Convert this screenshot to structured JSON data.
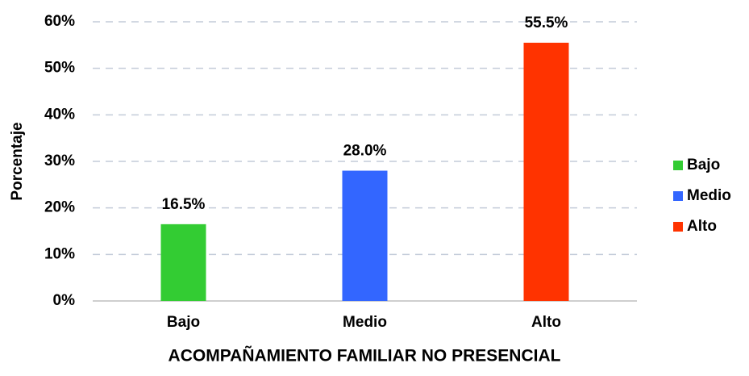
{
  "chart_data": {
    "type": "bar",
    "x_label": "ACOMPAÑAMIENTO FAMILIAR NO PRESENCIAL",
    "y_label": "Porcentaje",
    "categories": [
      "Bajo",
      "Medio",
      "Alto"
    ],
    "values": [
      16.5,
      28.0,
      55.5
    ],
    "value_labels": [
      "16.5%",
      "28.0%",
      "55.5%"
    ],
    "colors": [
      "#33cc33",
      "#3366ff",
      "#ff3300"
    ],
    "ylim": [
      0,
      60
    ],
    "yticks": [
      {
        "value": 0,
        "label": "0%"
      },
      {
        "value": 10,
        "label": "10%"
      },
      {
        "value": 20,
        "label": "20%"
      },
      {
        "value": 30,
        "label": "30%"
      },
      {
        "value": 40,
        "label": "40%"
      },
      {
        "value": 50,
        "label": "50%"
      },
      {
        "value": 60,
        "label": "60%"
      }
    ],
    "grid": true,
    "legend": "right"
  }
}
